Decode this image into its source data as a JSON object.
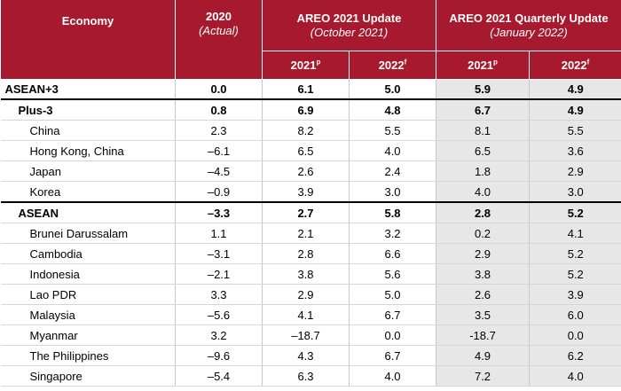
{
  "header": {
    "economy": "Economy",
    "col2020": "2020",
    "col2020_sub": "(Actual)",
    "group1": "AREO 2021 Update",
    "group1_sub": "(October 2021)",
    "group2": "AREO 2021 Quarterly Update",
    "group2_sub": "(January 2022)",
    "y2021": "2021",
    "y2021_mark": "p",
    "y2022": "2022",
    "y2022_mark": "f"
  },
  "rows": [
    {
      "name": "ASEAN+3",
      "level": 0,
      "v": [
        "0.0",
        "6.1",
        "5.0",
        "5.9",
        "4.9"
      ]
    },
    {
      "name": "Plus-3",
      "level": 1,
      "v": [
        "0.8",
        "6.9",
        "4.8",
        "6.7",
        "4.9"
      ]
    },
    {
      "name": "China",
      "level": 2,
      "v": [
        "2.3",
        "8.2",
        "5.5",
        "8.1",
        "5.5"
      ]
    },
    {
      "name": "Hong Kong, China",
      "level": 2,
      "v": [
        "–6.1",
        "6.5",
        "4.0",
        "6.5",
        "3.6"
      ]
    },
    {
      "name": "Japan",
      "level": 2,
      "v": [
        "–4.5",
        "2.6",
        "2.4",
        "1.8",
        "2.9"
      ]
    },
    {
      "name": "Korea",
      "level": 2,
      "v": [
        "–0.9",
        "3.9",
        "3.0",
        "4.0",
        "3.0"
      ]
    },
    {
      "name": "ASEAN",
      "level": 1,
      "v": [
        "–3.3",
        "2.7",
        "5.8",
        "2.8",
        "5.2"
      ]
    },
    {
      "name": "Brunei Darussalam",
      "level": 2,
      "v": [
        "1.1",
        "2.1",
        "3.2",
        "0.2",
        "4.1"
      ]
    },
    {
      "name": "Cambodia",
      "level": 2,
      "v": [
        "–3.1",
        "2.8",
        "6.6",
        "2.9",
        "5.2"
      ]
    },
    {
      "name": "Indonesia",
      "level": 2,
      "v": [
        "–2.1",
        "3.8",
        "5.6",
        "3.8",
        "5.2"
      ]
    },
    {
      "name": "Lao PDR",
      "level": 2,
      "v": [
        "3.3",
        "2.9",
        "5.0",
        "2.6",
        "3.9"
      ]
    },
    {
      "name": "Malaysia",
      "level": 2,
      "v": [
        "–5.6",
        "4.1",
        "6.7",
        "3.5",
        "6.0"
      ]
    },
    {
      "name": "Myanmar",
      "level": 2,
      "v": [
        "3.2",
        "–18.7",
        "0.0",
        "-18.7",
        "0.0"
      ]
    },
    {
      "name": "The Philippines",
      "level": 2,
      "v": [
        "–9.6",
        "4.3",
        "6.7",
        "4.9",
        "6.2"
      ]
    },
    {
      "name": "Singapore",
      "level": 2,
      "v": [
        "–5.4",
        "6.3",
        "4.0",
        "7.2",
        "4.0"
      ]
    }
  ],
  "colors": {
    "header_bg": "#a6192e",
    "shade": "#e7e7e7"
  }
}
